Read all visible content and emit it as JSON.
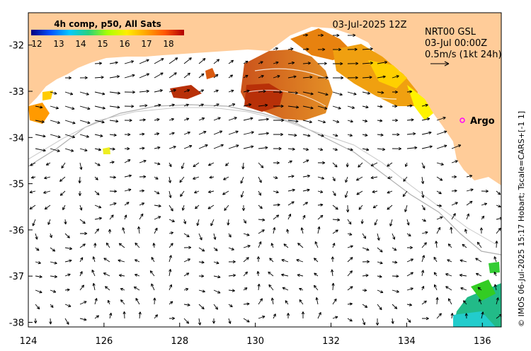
{
  "map": {
    "date_label": "03-Jul-2025 12Z",
    "product_line1": "NRT00 GSL",
    "product_line2": "03-Jul 00:00Z",
    "vector_scale_label": "0.5m/s (1kt 24h)",
    "argo_label": "Argo",
    "credit": "© IMOS 06-Jul-2025 15:17 Hobart; Tscale=CARS+[-1 1]",
    "x_ticks": [
      "124",
      "126",
      "128",
      "130",
      "132",
      "134",
      "136"
    ],
    "y_ticks": [
      "-32",
      "-33",
      "-34",
      "-35",
      "-36",
      "-37",
      "-38"
    ],
    "lon_range": [
      124,
      136.5
    ],
    "lat_range": [
      -38.1,
      -31.3
    ],
    "land_color": "#ffcc99",
    "argo_marker_color": "#ff00ff"
  },
  "colorbar": {
    "title": "4h comp, p50, All Sats",
    "ticks": [
      "12",
      "13",
      "14",
      "15",
      "16",
      "17",
      "18"
    ],
    "stops": [
      "#00007f",
      "#0050ff",
      "#00c8ff",
      "#28d17c",
      "#aaff00",
      "#ffee00",
      "#ffa500",
      "#ff5500",
      "#b00000"
    ]
  }
}
